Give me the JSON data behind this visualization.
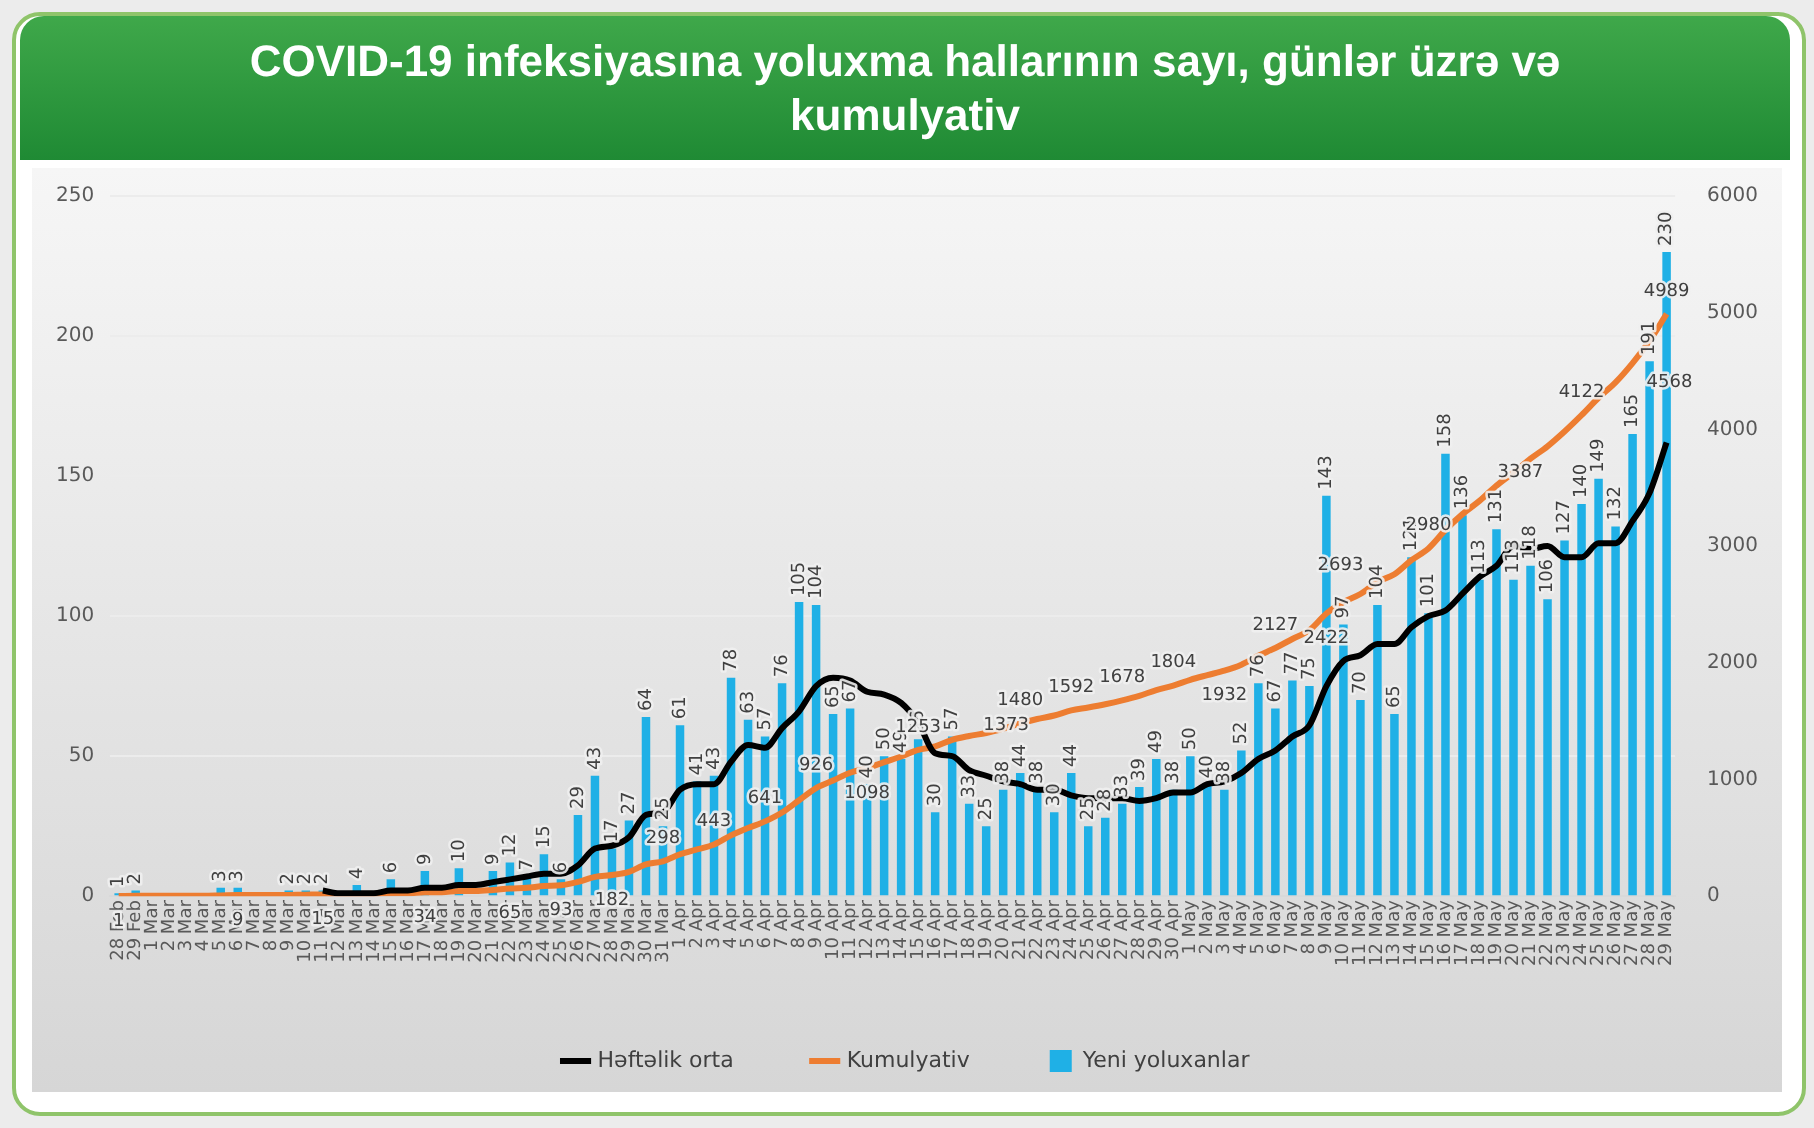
{
  "chart_data": {
    "type": "bar",
    "title": "COVID-19 infeksiyasına yoluxma hallarının sayı, günlər üzrə və kumulyativ",
    "categories": [
      "28 Feb",
      "29 Feb",
      "1 Mar",
      "2 Mar",
      "3 Mar",
      "4 Mar",
      "5 Mar",
      "6 Mar",
      "7 Mar",
      "8 Mar",
      "9 Mar",
      "10 Mar",
      "11 Mar",
      "12 Mar",
      "13 Mar",
      "14 Mar",
      "15 Mar",
      "16 Mar",
      "17 Mar",
      "18 Mar",
      "19 Mar",
      "20 Mar",
      "21 Mar",
      "22 Mar",
      "23 Mar",
      "24 Mar",
      "25 Mar",
      "26 Mar",
      "27 Mar",
      "28 Mar",
      "29 Mar",
      "30 Mar",
      "31 Mar",
      "1 Apr",
      "2 Apr",
      "3 Apr",
      "4 Apr",
      "5 Apr",
      "6 Apr",
      "7 Apr",
      "8 Apr",
      "9 Apr",
      "10 Apr",
      "11 Apr",
      "12 Apr",
      "13 Apr",
      "14 Apr",
      "15 Apr",
      "16 Apr",
      "17 Apr",
      "18 Apr",
      "19 Apr",
      "20 Apr",
      "21 Apr",
      "22 Apr",
      "23 Apr",
      "24 Apr",
      "25 Apr",
      "26 Apr",
      "27 Apr",
      "28 Apr",
      "29 Apr",
      "30 Apr",
      "1 May",
      "2 May",
      "3 May",
      "4 May",
      "5 May",
      "6 May",
      "7 May",
      "8 May",
      "9 May",
      "10 May",
      "11 May",
      "12 May",
      "13 May",
      "14 May",
      "15 May",
      "16 May",
      "17 May",
      "18 May",
      "19 May",
      "20 May",
      "21 May",
      "22 May",
      "23 May",
      "24 May",
      "25 May",
      "26 May",
      "27 May",
      "28 May",
      "29 May"
    ],
    "series": [
      {
        "name": "Yeni yoluxanlar",
        "type": "bar",
        "color": "#1fb0e6",
        "values": [
          1,
          2,
          0,
          0,
          0,
          0,
          3,
          3,
          0,
          0,
          2,
          2,
          2,
          0,
          4,
          0,
          6,
          0,
          9,
          0,
          10,
          0,
          9,
          12,
          7,
          15,
          6,
          29,
          43,
          17,
          27,
          64,
          25,
          61,
          41,
          43,
          78,
          63,
          57,
          76,
          105,
          104,
          65,
          67,
          40,
          50,
          49,
          56,
          30,
          57,
          33,
          25,
          38,
          44,
          38,
          30,
          44,
          25,
          28,
          33,
          39,
          49,
          38,
          50,
          40,
          38,
          52,
          76,
          67,
          77,
          75,
          143,
          97,
          70,
          104,
          65,
          121,
          101,
          158,
          136,
          113,
          131,
          113,
          118,
          106,
          127,
          140,
          149,
          132,
          165,
          191,
          230
        ],
        "value_labels": [
          "1",
          "2",
          null,
          null,
          null,
          null,
          "3",
          "3",
          null,
          null,
          "2",
          "2",
          "2",
          null,
          "4",
          null,
          "6",
          null,
          "9",
          null,
          "10",
          null,
          "9",
          "12",
          "7",
          "15",
          "6",
          "29",
          "43",
          "17",
          "27",
          "64",
          "25",
          "61",
          "41",
          "43",
          "78",
          "63",
          "57",
          "76",
          "105",
          "104",
          "65",
          "67",
          "40",
          "50",
          "49",
          "56",
          "30",
          "57",
          "33",
          "25",
          "38",
          "44",
          "38",
          "30",
          "44",
          "25",
          "28",
          "33",
          "39",
          "49",
          "38",
          "50",
          "40",
          "38",
          "52",
          "76",
          "67",
          "77",
          "75",
          "143",
          "97",
          "70",
          "104",
          "65",
          "121",
          "101",
          "158",
          "136",
          "113",
          "131",
          "113",
          "118",
          "106",
          "127",
          "140",
          "149",
          "132",
          "165",
          "191",
          "230"
        ]
      },
      {
        "name": "Həftəlik orta",
        "type": "line",
        "color": "#000000",
        "values": [
          null,
          null,
          null,
          null,
          null,
          null,
          null,
          null,
          null,
          null,
          null,
          null,
          2,
          1,
          1,
          1,
          2,
          2,
          3,
          3,
          4,
          4,
          5,
          6,
          7,
          8,
          8,
          11,
          17,
          18,
          21,
          29,
          30,
          38,
          40,
          40,
          48,
          54,
          53,
          60,
          66,
          75,
          78,
          77,
          73,
          72,
          69,
          62,
          51,
          50,
          45,
          43,
          41,
          40,
          38,
          38,
          36,
          35,
          35,
          35,
          34,
          35,
          37,
          37,
          40,
          41,
          44,
          49,
          52,
          57,
          61,
          75,
          84,
          86,
          90,
          90,
          96,
          100,
          102,
          108,
          114,
          118,
          125,
          124,
          125,
          121,
          121,
          126,
          126,
          134,
          144,
          162
        ]
      },
      {
        "name": "Kumulyativ",
        "type": "line",
        "axis": "y2",
        "color": "#ed7d31",
        "values": [
          1,
          3,
          3,
          3,
          3,
          3,
          6,
          9,
          9,
          9,
          11,
          13,
          15,
          15,
          19,
          19,
          25,
          25,
          34,
          34,
          44,
          44,
          53,
          65,
          72,
          87,
          93,
          122,
          165,
          182,
          209,
          273,
          298,
          359,
          400,
          443,
          521,
          584,
          641,
          717,
          822,
          926,
          991,
          1058,
          1098,
          1148,
          1197,
          1253,
          1283,
          1340,
          1373,
          1398,
          1436,
          1480,
          1518,
          1548,
          1592,
          1617,
          1645,
          1678,
          1717,
          1766,
          1804,
          1854,
          1894,
          1932,
          1984,
          2060,
          2127,
          2204,
          2279,
          2422,
          2519,
          2589,
          2693,
          2758,
          2879,
          2980,
          3138,
          3274,
          3387,
          3518,
          3631,
          3749,
          3855,
          3982,
          4122,
          4271,
          4403,
          4568,
          4759,
          4989
        ],
        "value_labels": [
          "1",
          null,
          null,
          null,
          null,
          null,
          null,
          "9",
          null,
          null,
          null,
          null,
          "15",
          null,
          null,
          null,
          null,
          null,
          "34",
          null,
          null,
          null,
          null,
          "65",
          null,
          null,
          "93",
          null,
          null,
          "182",
          null,
          null,
          "298",
          null,
          null,
          "443",
          null,
          null,
          "641",
          null,
          null,
          "926",
          null,
          null,
          "1098",
          null,
          null,
          "1253",
          null,
          null,
          "1373",
          null,
          null,
          "1480",
          null,
          null,
          "1592",
          null,
          null,
          "1678",
          null,
          null,
          "1804",
          null,
          null,
          "1932",
          null,
          null,
          "2127",
          null,
          null,
          "2422",
          null,
          null,
          "2693",
          null,
          null,
          "2980",
          null,
          null,
          "3387",
          null,
          null,
          null,
          null,
          null,
          "4122",
          null,
          null,
          "4568",
          null,
          "4989"
        ]
      }
    ],
    "ylim": [
      0,
      250
    ],
    "yticks": [
      0,
      50,
      100,
      150,
      200,
      250
    ],
    "y2lim": [
      0,
      6000
    ],
    "y2ticks": [
      0,
      1000,
      2000,
      3000,
      4000,
      5000,
      6000
    ],
    "grid": "y",
    "legend": "bottom",
    "marker": "none"
  }
}
